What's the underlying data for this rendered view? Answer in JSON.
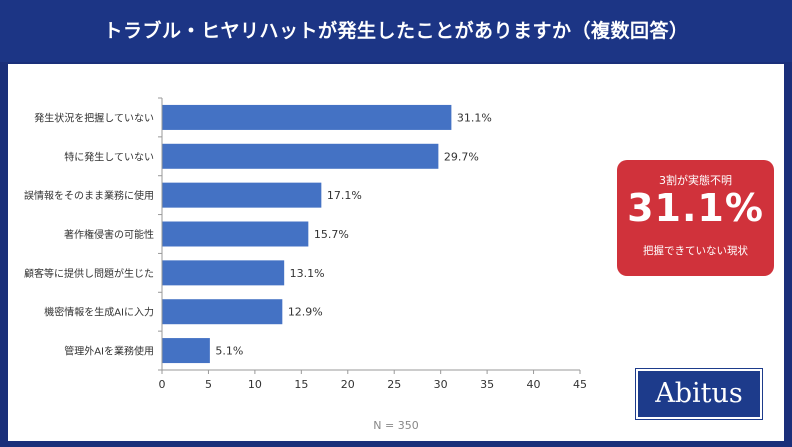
{
  "header": {
    "title": "トラブル・ヒヤリハットが発生したことがありますか（複数回答）"
  },
  "callout": {
    "top": "3割が実態不明",
    "big": "31.1%",
    "bottom": "把握できていない現状"
  },
  "logo": {
    "text": "Abitus"
  },
  "note": "N = 350",
  "colors": {
    "bar": "#4472c4",
    "header": "#1c3585",
    "callout": "#d0323b",
    "logo": "#1d3b8b"
  },
  "chart_data": {
    "type": "bar",
    "orientation": "horizontal",
    "categories": [
      "発生状況を把握していない",
      "特に発生していない",
      "誤情報をそのまま業務に使用",
      "著作権侵害の可能性",
      "顧客等に提供し問題が生じた",
      "機密情報を生成AIに入力",
      "管理外AIを業務使用"
    ],
    "values": [
      31.1,
      29.7,
      17.1,
      15.7,
      13.1,
      12.9,
      5.1
    ],
    "data_labels": [
      "31.1%",
      "29.7%",
      "17.1%",
      "15.7%",
      "13.1%",
      "12.9%",
      "5.1%"
    ],
    "xticks": [
      0,
      5,
      10,
      15,
      20,
      25,
      30,
      35,
      40,
      45
    ],
    "xlim": [
      0,
      45
    ],
    "grid": false
  }
}
